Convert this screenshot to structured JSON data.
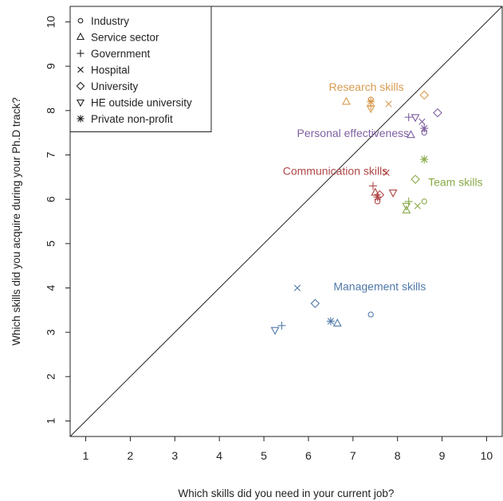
{
  "chart_data": {
    "type": "scatter",
    "title": "",
    "xlabel": "Which skills did you need in your current job?",
    "ylabel": "Which skills did you acquire during your Ph.D track?",
    "xlim": [
      0.65,
      10.35
    ],
    "ylim": [
      0.65,
      10.35
    ],
    "xticks": [
      "1",
      "2",
      "3",
      "4",
      "5",
      "6",
      "7",
      "8",
      "9",
      "10"
    ],
    "yticks": [
      "1",
      "2",
      "3",
      "4",
      "5",
      "6",
      "7",
      "8",
      "9",
      "10"
    ],
    "grid": false,
    "legend_position": "top-left",
    "reference_line": "y = x",
    "legend": [
      {
        "name": "Industry",
        "marker": "circle"
      },
      {
        "name": "Service sector",
        "marker": "triangle-up"
      },
      {
        "name": "Government",
        "marker": "plus"
      },
      {
        "name": "Hospital",
        "marker": "cross"
      },
      {
        "name": "University",
        "marker": "diamond"
      },
      {
        "name": "HE outside university",
        "marker": "triangle-down"
      },
      {
        "name": "Private non-profit",
        "marker": "asterisk"
      }
    ],
    "groups": [
      {
        "label": "Research skills",
        "color": "#d89a50",
        "label_anchor": [
          7.3,
          8.45
        ],
        "points": {
          "Industry": [
            7.4,
            8.25
          ],
          "Service sector": [
            6.85,
            8.2
          ],
          "Government": [
            7.4,
            8.1
          ],
          "Hospital": [
            7.8,
            8.15
          ],
          "University": [
            8.6,
            8.35
          ],
          "HE outside university": [
            7.4,
            8.05
          ],
          "Private non-profit": [
            7.4,
            8.2
          ]
        }
      },
      {
        "label": "Personal effectiveness",
        "color": "#7e60a0",
        "label_anchor": [
          7.0,
          7.4
        ],
        "points": {
          "Industry": [
            8.6,
            7.5
          ],
          "Service sector": [
            8.3,
            7.45
          ],
          "Government": [
            8.25,
            7.85
          ],
          "Hospital": [
            8.55,
            7.75
          ],
          "University": [
            8.9,
            7.95
          ],
          "HE outside university": [
            8.4,
            7.85
          ],
          "Private non-profit": [
            8.6,
            7.6
          ]
        }
      },
      {
        "label": "Communication skills",
        "color": "#b04848",
        "label_anchor": [
          6.6,
          6.55
        ],
        "points": {
          "Industry": [
            7.55,
            5.95
          ],
          "Service sector": [
            7.5,
            6.15
          ],
          "Government": [
            7.45,
            6.3
          ],
          "Hospital": [
            7.75,
            6.6
          ],
          "University": [
            7.6,
            6.1
          ],
          "HE outside university": [
            7.9,
            6.15
          ],
          "Private non-profit": [
            7.55,
            6.05
          ]
        }
      },
      {
        "label": "Team skills",
        "color": "#88aa48",
        "label_anchor": [
          9.3,
          6.3
        ],
        "points": {
          "Industry": [
            8.6,
            5.95
          ],
          "Service sector": [
            8.2,
            5.75
          ],
          "Government": [
            8.25,
            5.95
          ],
          "Hospital": [
            8.45,
            5.85
          ],
          "University": [
            8.4,
            6.45
          ],
          "HE outside university": [
            8.2,
            5.85
          ],
          "Private non-profit": [
            8.6,
            6.9
          ]
        }
      },
      {
        "label": "Management skills",
        "color": "#5078a8",
        "label_anchor": [
          7.6,
          3.95
        ],
        "points": {
          "Industry": [
            7.4,
            3.4
          ],
          "Service sector": [
            6.65,
            3.2
          ],
          "Government": [
            5.4,
            3.15
          ],
          "Hospital": [
            5.75,
            4.0
          ],
          "University": [
            6.15,
            3.65
          ],
          "HE outside university": [
            5.25,
            3.05
          ],
          "Private non-profit": [
            6.5,
            3.25
          ]
        }
      }
    ]
  }
}
